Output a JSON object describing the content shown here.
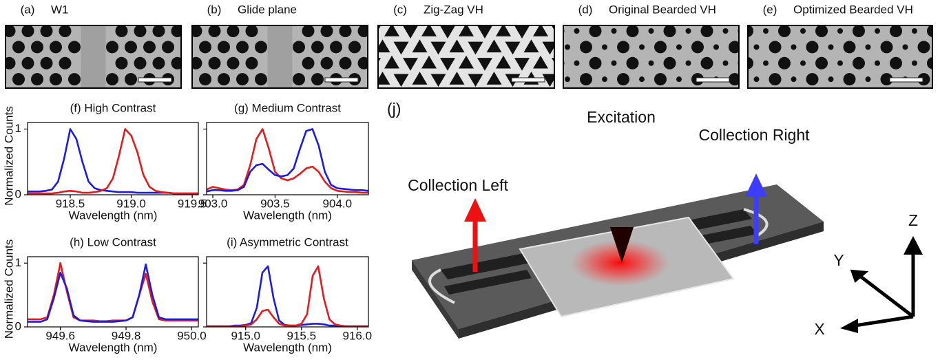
{
  "panels": [
    {
      "label": "(a)",
      "title": "W1"
    },
    {
      "label": "(b)",
      "title": "Glide plane"
    },
    {
      "label": "(c)",
      "title": "Zig-Zag VH"
    },
    {
      "label": "(d)",
      "title": "Original Bearded VH"
    },
    {
      "label": "(e)",
      "title": "Optimized Bearded VH"
    }
  ],
  "device": {
    "label": "(j)",
    "excitation": "Excitation",
    "collection_left": "Collection Left",
    "collection_right": "Collection Right",
    "axis_x": "X",
    "axis_y": "Y",
    "axis_z": "Z"
  },
  "chart_data": [
    {
      "type": "line",
      "title": "(f) High Contrast",
      "xlabel": "Wavelength (nm)",
      "ylabel": "Normalized Counts",
      "x": [
        918.15,
        918.2,
        918.25,
        918.3,
        918.35,
        918.4,
        918.45,
        918.5,
        918.55,
        918.6,
        918.65,
        918.7,
        918.75,
        918.8,
        918.85,
        918.9,
        918.95,
        919.0,
        919.05,
        919.1,
        919.15,
        919.2,
        919.25,
        919.3,
        919.35,
        919.4,
        919.45,
        919.5,
        919.55
      ],
      "series": [
        {
          "color": "#1c1ce0",
          "values": [
            0.05,
            0.05,
            0.05,
            0.06,
            0.08,
            0.2,
            0.55,
            1.0,
            0.85,
            0.5,
            0.2,
            0.1,
            0.07,
            0.06,
            0.05,
            0.04,
            0.04,
            0.04,
            0.03,
            0.03,
            0.03,
            0.03,
            0.03,
            0.03,
            0.02,
            0.02,
            0.02,
            0.02,
            0.02
          ]
        },
        {
          "color": "#e01c1c",
          "values": [
            0.02,
            0.02,
            0.02,
            0.02,
            0.02,
            0.03,
            0.05,
            0.06,
            0.05,
            0.03,
            0.03,
            0.04,
            0.06,
            0.1,
            0.25,
            0.6,
            1.0,
            0.9,
            0.65,
            0.3,
            0.12,
            0.06,
            0.04,
            0.03,
            0.02,
            0.02,
            0.02,
            0.02,
            0.02
          ]
        }
      ],
      "xlim": [
        918.15,
        919.55
      ],
      "xticks": [
        918.5,
        {
          "value": 919,
          "label": "919.0"
        },
        919.5
      ],
      "ylim": [
        0,
        1.1
      ],
      "yticks": [
        0,
        1
      ],
      "show_ytick_labels": true
    },
    {
      "type": "line",
      "title": "(g) Medium Contrast",
      "xlabel": "Wavelength (nm)",
      "x": [
        902.95,
        903.0,
        903.05,
        903.1,
        903.15,
        903.2,
        903.25,
        903.3,
        903.35,
        903.4,
        903.45,
        903.5,
        903.55,
        903.6,
        903.65,
        903.7,
        903.75,
        903.8,
        903.85,
        903.9,
        903.95,
        904.0,
        904.05,
        904.1,
        904.15,
        904.2,
        904.25
      ],
      "series": [
        {
          "color": "#e01c1c",
          "values": [
            0.08,
            0.12,
            0.1,
            0.08,
            0.07,
            0.08,
            0.15,
            0.45,
            0.85,
            1.0,
            0.7,
            0.35,
            0.25,
            0.22,
            0.25,
            0.32,
            0.4,
            0.43,
            0.35,
            0.2,
            0.1,
            0.06,
            0.05,
            0.04,
            0.04,
            0.03,
            0.03
          ]
        },
        {
          "color": "#1c1ce0",
          "values": [
            0.05,
            0.07,
            0.07,
            0.06,
            0.06,
            0.07,
            0.12,
            0.35,
            0.45,
            0.47,
            0.38,
            0.3,
            0.28,
            0.3,
            0.4,
            0.7,
            0.97,
            1.0,
            0.75,
            0.35,
            0.15,
            0.1,
            0.09,
            0.08,
            0.07,
            0.07,
            0.06
          ]
        }
      ],
      "xlim": [
        902.95,
        904.25
      ],
      "xticks": [
        {
          "value": 903,
          "label": "903.0"
        },
        903.5,
        {
          "value": 904,
          "label": "904.0"
        }
      ],
      "ylim": [
        0,
        1.1
      ],
      "yticks": [
        0,
        1
      ],
      "show_ytick_labels": false
    },
    {
      "type": "line",
      "title": "(h) Low Contrast",
      "xlabel": "Wavelength (nm)",
      "ylabel": "Normalized Counts",
      "x": [
        949.5,
        949.52,
        949.54,
        949.56,
        949.58,
        949.6,
        949.62,
        949.64,
        949.66,
        949.68,
        949.7,
        949.72,
        949.74,
        949.76,
        949.78,
        949.8,
        949.82,
        949.84,
        949.86,
        949.88,
        949.9,
        949.92,
        949.94,
        949.96,
        949.98,
        950.0,
        950.02
      ],
      "series": [
        {
          "color": "#e01c1c",
          "values": [
            0.12,
            0.12,
            0.12,
            0.15,
            0.5,
            1.0,
            0.55,
            0.15,
            0.1,
            0.1,
            0.1,
            0.09,
            0.09,
            0.1,
            0.1,
            0.1,
            0.15,
            0.5,
            0.83,
            0.4,
            0.12,
            0.1,
            0.1,
            0.1,
            0.1,
            0.1,
            0.1
          ]
        },
        {
          "color": "#1c1ce0",
          "values": [
            0.08,
            0.08,
            0.08,
            0.12,
            0.45,
            0.85,
            0.6,
            0.18,
            0.1,
            0.09,
            0.08,
            0.08,
            0.08,
            0.08,
            0.09,
            0.1,
            0.15,
            0.5,
            0.98,
            0.5,
            0.15,
            0.12,
            0.12,
            0.12,
            0.12,
            0.12,
            0.12
          ]
        }
      ],
      "xlim": [
        949.5,
        950.02
      ],
      "xticks": [
        949.6,
        949.8,
        {
          "value": 950,
          "label": "950.0"
        }
      ],
      "ylim": [
        0,
        1.1
      ],
      "yticks": [
        0,
        1
      ],
      "show_ytick_labels": true
    },
    {
      "type": "line",
      "title": "(i) Asymmetric Contrast",
      "xlabel": "Wavelength (nm)",
      "x": [
        914.65,
        914.7,
        914.75,
        914.8,
        914.85,
        914.9,
        914.95,
        915.0,
        915.05,
        915.1,
        915.15,
        915.2,
        915.25,
        915.3,
        915.35,
        915.4,
        915.45,
        915.5,
        915.55,
        915.6,
        915.65,
        915.7,
        915.75,
        915.8,
        915.85,
        915.9,
        915.95,
        916.0,
        916.05,
        916.1
      ],
      "series": [
        {
          "color": "#1c1ce0",
          "values": [
            0.01,
            0.01,
            0.01,
            0.01,
            0.01,
            0.02,
            0.02,
            0.03,
            0.06,
            0.3,
            0.85,
            0.95,
            0.45,
            0.1,
            0.03,
            0.02,
            0.02,
            0.03,
            0.04,
            0.05,
            0.05,
            0.04,
            0.02,
            0.02,
            0.01,
            0.01,
            0.01,
            0.01,
            0.01,
            0.01
          ]
        },
        {
          "color": "#e01c1c",
          "values": [
            0.01,
            0.01,
            0.01,
            0.01,
            0.01,
            0.01,
            0.01,
            0.02,
            0.04,
            0.12,
            0.25,
            0.27,
            0.15,
            0.05,
            0.02,
            0.02,
            0.02,
            0.05,
            0.2,
            0.8,
            0.95,
            0.45,
            0.12,
            0.04,
            0.02,
            0.01,
            0.01,
            0.01,
            0.01,
            0.01
          ]
        }
      ],
      "xlim": [
        914.65,
        916.1
      ],
      "xticks": [
        {
          "value": 915,
          "label": "915.0"
        },
        915.5,
        {
          "value": 916,
          "label": "916.0"
        }
      ],
      "ylim": [
        0,
        1.1
      ],
      "yticks": [
        0,
        1
      ],
      "show_ytick_labels": false
    }
  ]
}
